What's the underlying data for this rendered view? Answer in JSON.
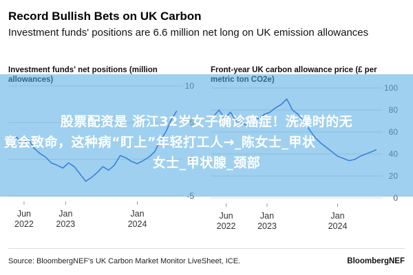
{
  "header": {
    "title": "Record Bullish Bets on UK Carbon",
    "subtitle": "Investment funds' positions are 6.6 million net long on UK emission allowances"
  },
  "overlay": {
    "line1": "股票配资是 浙江32岁女子确诊癌症！洗澡时的无",
    "line2": "竟会致命，这种病“盯上”年轻打工人→_陈女士_甲状",
    "line3": "女士_甲状腺_颈部"
  },
  "footer": {
    "source": "Source: BloombergNEF's UK Carbon Market Monitor LiveSheet, ICE.",
    "brand": "BloombergNEF"
  },
  "colors": {
    "line": "#1f4fd6",
    "grid": "#d9d9d9",
    "text": "#555555",
    "overlay": "#50aae1"
  },
  "chart_data": [
    {
      "type": "line",
      "title": "Investment funds' net positions (million allowances)",
      "xlabel": "",
      "ylabel": "",
      "ylim": [
        -5,
        10
      ],
      "y_ticks": [
        "10",
        "5",
        "0",
        "-5"
      ],
      "x_ticks": [
        "Jun\n2022",
        "Jan\n2023",
        "Jan\n2024"
      ],
      "x_tick_dates": [
        2022.42,
        2023.0,
        2024.0
      ],
      "xlim": [
        2022.2,
        2024.6
      ],
      "grid": true,
      "series": [
        {
          "x": [
            2022.25,
            2022.32,
            2022.4,
            2022.48,
            2022.56,
            2022.64,
            2022.72,
            2022.8,
            2022.88,
            2022.96,
            2023.04,
            2023.12,
            2023.2,
            2023.28,
            2023.36,
            2023.44,
            2023.52,
            2023.6,
            2023.68,
            2023.76,
            2023.84,
            2023.92,
            2024.0,
            2024.08,
            2024.16,
            2024.24,
            2024.32,
            2024.4,
            2024.48,
            2024.55
          ],
          "values": [
            2.5,
            3.0,
            2.0,
            2.8,
            1.5,
            0.8,
            0.3,
            -0.5,
            -0.8,
            -1.2,
            -0.5,
            -1.0,
            -2.0,
            -3.0,
            -2.5,
            -1.8,
            -1.0,
            -1.5,
            -0.8,
            0.5,
            0.2,
            -0.3,
            -0.6,
            -0.2,
            0.3,
            1.0,
            2.5,
            3.8,
            5.5,
            6.6
          ]
        }
      ]
    },
    {
      "type": "line",
      "title": "Front-year UK carbon allowance price (£ per metric ton CO2e)",
      "xlabel": "",
      "ylabel": "",
      "ylim": [
        0,
        100
      ],
      "y_ticks": [
        "100",
        "80",
        "60",
        "40",
        "20",
        "0"
      ],
      "x_ticks": [
        "Jun\n2022",
        "Jan\n2023",
        "Jan\n2024"
      ],
      "x_tick_dates": [
        2022.42,
        2023.0,
        2024.0
      ],
      "xlim": [
        2022.2,
        2024.6
      ],
      "grid": true,
      "series": [
        {
          "x": [
            2022.25,
            2022.32,
            2022.4,
            2022.48,
            2022.56,
            2022.64,
            2022.72,
            2022.8,
            2022.88,
            2022.96,
            2023.04,
            2023.12,
            2023.2,
            2023.28,
            2023.36,
            2023.44,
            2023.52,
            2023.6,
            2023.68,
            2023.76,
            2023.84,
            2023.92,
            2024.0,
            2024.08,
            2024.16,
            2024.24,
            2024.32,
            2024.4,
            2024.48,
            2024.55
          ],
          "values": [
            75,
            80,
            72,
            78,
            70,
            68,
            66,
            74,
            72,
            76,
            78,
            82,
            85,
            90,
            80,
            76,
            70,
            62,
            55,
            50,
            46,
            42,
            38,
            36,
            34,
            35,
            38,
            40,
            42,
            44
          ]
        }
      ]
    }
  ]
}
